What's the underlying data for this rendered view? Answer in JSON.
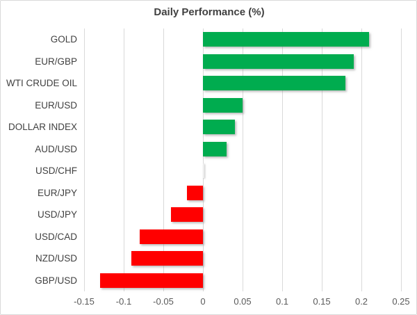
{
  "chart_data": {
    "type": "bar",
    "orientation": "horizontal",
    "title": "Daily Performance (%)",
    "categories": [
      "GOLD",
      "EUR/GBP",
      "WTI CRUDE OIL",
      "EUR/USD",
      "DOLLAR INDEX",
      "AUD/USD",
      "USD/CHF",
      "EUR/JPY",
      "USD/JPY",
      "USD/CAD",
      "NZD/USD",
      "GBP/USD"
    ],
    "values": [
      0.21,
      0.19,
      0.18,
      0.05,
      0.04,
      0.03,
      0.0,
      -0.02,
      -0.04,
      -0.08,
      -0.09,
      -0.13
    ],
    "xlim": [
      -0.15,
      0.25
    ],
    "xticks": [
      -0.15,
      -0.1,
      -0.05,
      0,
      0.05,
      0.1,
      0.15,
      0.2,
      0.25
    ],
    "xtick_labels": [
      "-0.15",
      "-0.1",
      "-0.05",
      "0",
      "0.05",
      "0.1",
      "0.15",
      "0.2",
      "0.25"
    ],
    "grid": true,
    "legend": "none",
    "xlabel": "",
    "ylabel": "",
    "colors": {
      "positive": "#00AC4F",
      "negative": "#FF0000",
      "zero_bar": "#ededed",
      "gridline": "#d9d9d9",
      "title_text": "#404040",
      "category_text": "#404040",
      "tick_text": "#595959",
      "background": "#ffffff",
      "frame_border": "#d9d9d9"
    }
  }
}
